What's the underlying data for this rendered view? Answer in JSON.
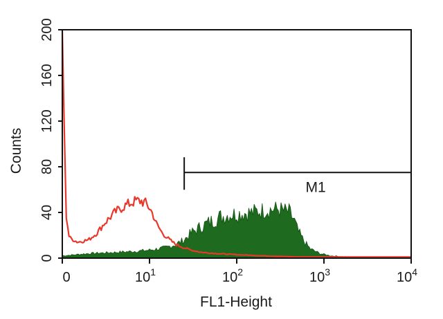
{
  "chart_data": {
    "type": "area",
    "xlabel": "FL1-Height",
    "ylabel": "Counts",
    "x_scale": "log",
    "xlim": [
      1,
      10000
    ],
    "ylim": [
      0,
      200
    ],
    "x_ticks": [
      {
        "value": 1,
        "base": "0",
        "exp": ""
      },
      {
        "value": 10,
        "base": "10",
        "exp": "1"
      },
      {
        "value": 100,
        "base": "10",
        "exp": "2"
      },
      {
        "value": 1000,
        "base": "10",
        "exp": "3"
      },
      {
        "value": 10000,
        "base": "10",
        "exp": "4"
      }
    ],
    "y_ticks": [
      0,
      40,
      80,
      120,
      160,
      200
    ],
    "grid": false,
    "marker": {
      "label": "M1",
      "x_start": 25,
      "x_end": 10000,
      "y": 75
    },
    "series": [
      {
        "color": "#1e6a1e",
        "style": "filled",
        "points": [
          [
            1,
            2
          ],
          [
            2,
            4
          ],
          [
            4,
            5
          ],
          [
            7,
            6
          ],
          [
            10,
            7
          ],
          [
            15,
            9
          ],
          [
            20,
            12
          ],
          [
            25,
            16
          ],
          [
            30,
            22
          ],
          [
            40,
            28
          ],
          [
            50,
            32
          ],
          [
            65,
            36
          ],
          [
            80,
            38
          ],
          [
            100,
            39
          ],
          [
            150,
            40
          ],
          [
            200,
            42
          ],
          [
            300,
            43
          ],
          [
            400,
            40
          ],
          [
            450,
            34
          ],
          [
            500,
            24
          ],
          [
            600,
            14
          ],
          [
            700,
            8
          ],
          [
            900,
            4
          ],
          [
            1200,
            2
          ],
          [
            2000,
            1
          ],
          [
            5000,
            0.5
          ],
          [
            10000,
            0.5
          ]
        ]
      },
      {
        "color": "#e8372b",
        "style": "line",
        "points": [
          [
            1,
            200
          ],
          [
            1.05,
            120
          ],
          [
            1.1,
            40
          ],
          [
            1.2,
            18
          ],
          [
            1.5,
            14
          ],
          [
            2,
            16
          ],
          [
            2.5,
            22
          ],
          [
            3,
            30
          ],
          [
            4,
            40
          ],
          [
            5,
            45
          ],
          [
            6,
            48
          ],
          [
            7,
            50
          ],
          [
            8,
            50
          ],
          [
            9,
            48
          ],
          [
            10,
            44
          ],
          [
            11,
            38
          ],
          [
            12,
            30
          ],
          [
            14,
            22
          ],
          [
            17,
            16
          ],
          [
            20,
            12
          ],
          [
            25,
            9
          ],
          [
            30,
            7
          ],
          [
            40,
            5
          ],
          [
            60,
            4
          ],
          [
            100,
            3
          ],
          [
            200,
            2
          ],
          [
            500,
            1
          ],
          [
            1000,
            1
          ],
          [
            10000,
            1
          ]
        ]
      }
    ]
  }
}
